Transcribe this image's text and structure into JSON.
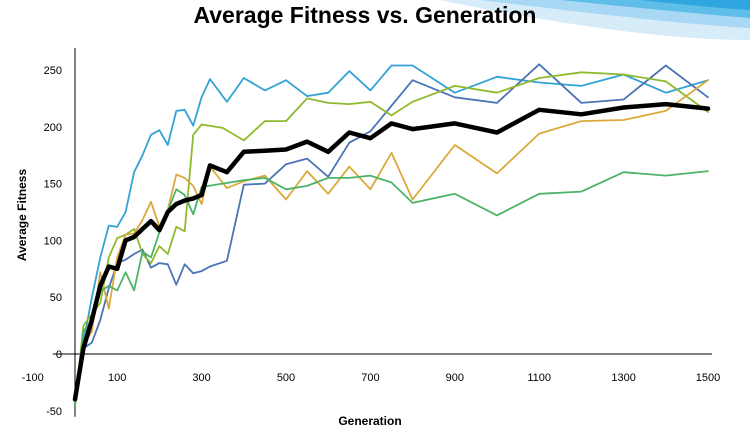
{
  "chart_data": {
    "type": "line",
    "title": "Average Fitness vs. Generation",
    "xlabel": "Generation",
    "ylabel": "Average Fitness",
    "xlim": [
      -100,
      1500
    ],
    "ylim": [
      -50,
      250
    ],
    "xticks": [
      -100,
      100,
      300,
      500,
      700,
      900,
      1100,
      1300,
      1500
    ],
    "yticks": [
      -50,
      0,
      50,
      100,
      150,
      200,
      250
    ],
    "grid": false,
    "legend": "none",
    "series": [
      {
        "color": "#33a3d6",
        "width": 1.8,
        "points": [
          [
            0,
            -45
          ],
          [
            20,
            10
          ],
          [
            40,
            50
          ],
          [
            60,
            85
          ],
          [
            80,
            113
          ],
          [
            100,
            112
          ],
          [
            120,
            125
          ],
          [
            140,
            160
          ],
          [
            160,
            175
          ],
          [
            180,
            193
          ],
          [
            200,
            197
          ],
          [
            220,
            184
          ],
          [
            240,
            214
          ],
          [
            260,
            215
          ],
          [
            280,
            201
          ],
          [
            300,
            226
          ],
          [
            320,
            242
          ],
          [
            360,
            222
          ],
          [
            400,
            243
          ],
          [
            450,
            232
          ],
          [
            500,
            241
          ],
          [
            550,
            227
          ],
          [
            600,
            230
          ],
          [
            650,
            249
          ],
          [
            700,
            232
          ],
          [
            750,
            254
          ],
          [
            800,
            254
          ],
          [
            900,
            230
          ],
          [
            1000,
            244
          ],
          [
            1100,
            239
          ],
          [
            1200,
            236
          ],
          [
            1300,
            246
          ],
          [
            1400,
            230
          ],
          [
            1500,
            241
          ]
        ]
      },
      {
        "color": "#4b73b5",
        "width": 1.8,
        "points": [
          [
            0,
            -45
          ],
          [
            20,
            5
          ],
          [
            40,
            10
          ],
          [
            60,
            30
          ],
          [
            80,
            58
          ],
          [
            100,
            80
          ],
          [
            120,
            83
          ],
          [
            140,
            88
          ],
          [
            160,
            92
          ],
          [
            180,
            76
          ],
          [
            200,
            80
          ],
          [
            220,
            79
          ],
          [
            240,
            61
          ],
          [
            260,
            79
          ],
          [
            280,
            71
          ],
          [
            300,
            73
          ],
          [
            320,
            77
          ],
          [
            360,
            82
          ],
          [
            400,
            149
          ],
          [
            450,
            150
          ],
          [
            500,
            167
          ],
          [
            550,
            172
          ],
          [
            600,
            156
          ],
          [
            650,
            186
          ],
          [
            700,
            196
          ],
          [
            800,
            241
          ],
          [
            900,
            226
          ],
          [
            1000,
            221
          ],
          [
            1100,
            255
          ],
          [
            1200,
            221
          ],
          [
            1300,
            224
          ],
          [
            1400,
            254
          ],
          [
            1500,
            226
          ]
        ]
      },
      {
        "color": "#8fba2e",
        "width": 1.8,
        "points": [
          [
            0,
            -45
          ],
          [
            20,
            25
          ],
          [
            40,
            35
          ],
          [
            60,
            45
          ],
          [
            80,
            85
          ],
          [
            100,
            102
          ],
          [
            120,
            105
          ],
          [
            140,
            110
          ],
          [
            160,
            88
          ],
          [
            180,
            80
          ],
          [
            200,
            95
          ],
          [
            220,
            88
          ],
          [
            240,
            112
          ],
          [
            260,
            108
          ],
          [
            280,
            193
          ],
          [
            300,
            202
          ],
          [
            350,
            199
          ],
          [
            400,
            188
          ],
          [
            450,
            205
          ],
          [
            500,
            205
          ],
          [
            550,
            225
          ],
          [
            600,
            221
          ],
          [
            650,
            220
          ],
          [
            700,
            222
          ],
          [
            750,
            210
          ],
          [
            800,
            222
          ],
          [
            900,
            236
          ],
          [
            1000,
            230
          ],
          [
            1100,
            243
          ],
          [
            1200,
            248
          ],
          [
            1300,
            246
          ],
          [
            1400,
            240
          ],
          [
            1500,
            213
          ]
        ]
      },
      {
        "color": "#dba93b",
        "width": 1.8,
        "points": [
          [
            0,
            -45
          ],
          [
            20,
            8
          ],
          [
            40,
            20
          ],
          [
            60,
            72
          ],
          [
            80,
            40
          ],
          [
            100,
            85
          ],
          [
            120,
            105
          ],
          [
            140,
            106
          ],
          [
            160,
            118
          ],
          [
            180,
            134
          ],
          [
            200,
            112
          ],
          [
            220,
            127
          ],
          [
            240,
            158
          ],
          [
            260,
            155
          ],
          [
            280,
            148
          ],
          [
            300,
            132
          ],
          [
            320,
            165
          ],
          [
            360,
            146
          ],
          [
            400,
            152
          ],
          [
            450,
            157
          ],
          [
            500,
            136
          ],
          [
            550,
            161
          ],
          [
            600,
            141
          ],
          [
            650,
            165
          ],
          [
            700,
            145
          ],
          [
            750,
            177
          ],
          [
            800,
            136
          ],
          [
            900,
            184
          ],
          [
            1000,
            159
          ],
          [
            1100,
            194
          ],
          [
            1200,
            205
          ],
          [
            1300,
            206
          ],
          [
            1400,
            214
          ],
          [
            1500,
            241
          ]
        ]
      },
      {
        "color": "#4db368",
        "width": 1.8,
        "points": [
          [
            0,
            -45
          ],
          [
            20,
            20
          ],
          [
            40,
            30
          ],
          [
            60,
            55
          ],
          [
            80,
            60
          ],
          [
            100,
            56
          ],
          [
            120,
            72
          ],
          [
            140,
            56
          ],
          [
            160,
            90
          ],
          [
            180,
            85
          ],
          [
            200,
            107
          ],
          [
            220,
            126
          ],
          [
            240,
            145
          ],
          [
            260,
            140
          ],
          [
            280,
            123
          ],
          [
            300,
            147
          ],
          [
            350,
            150
          ],
          [
            400,
            153
          ],
          [
            450,
            155
          ],
          [
            500,
            145
          ],
          [
            550,
            148
          ],
          [
            600,
            155
          ],
          [
            650,
            155
          ],
          [
            700,
            157
          ],
          [
            750,
            151
          ],
          [
            800,
            133
          ],
          [
            900,
            141
          ],
          [
            1000,
            122
          ],
          [
            1100,
            141
          ],
          [
            1200,
            143
          ],
          [
            1300,
            160
          ],
          [
            1400,
            157
          ],
          [
            1500,
            161
          ]
        ]
      },
      {
        "color": "#000000",
        "width": 4.5,
        "points": [
          [
            0,
            -40
          ],
          [
            20,
            5
          ],
          [
            40,
            30
          ],
          [
            60,
            60
          ],
          [
            80,
            77
          ],
          [
            100,
            75
          ],
          [
            120,
            100
          ],
          [
            140,
            103
          ],
          [
            160,
            110
          ],
          [
            180,
            117
          ],
          [
            200,
            109
          ],
          [
            220,
            125
          ],
          [
            240,
            132
          ],
          [
            260,
            135
          ],
          [
            280,
            137
          ],
          [
            300,
            140
          ],
          [
            320,
            166
          ],
          [
            360,
            160
          ],
          [
            400,
            178
          ],
          [
            450,
            179
          ],
          [
            500,
            180
          ],
          [
            550,
            187
          ],
          [
            600,
            178
          ],
          [
            650,
            195
          ],
          [
            700,
            190
          ],
          [
            750,
            203
          ],
          [
            800,
            198
          ],
          [
            900,
            203
          ],
          [
            1000,
            195
          ],
          [
            1100,
            215
          ],
          [
            1200,
            211
          ],
          [
            1300,
            217
          ],
          [
            1400,
            220
          ],
          [
            1500,
            216
          ]
        ]
      }
    ]
  }
}
